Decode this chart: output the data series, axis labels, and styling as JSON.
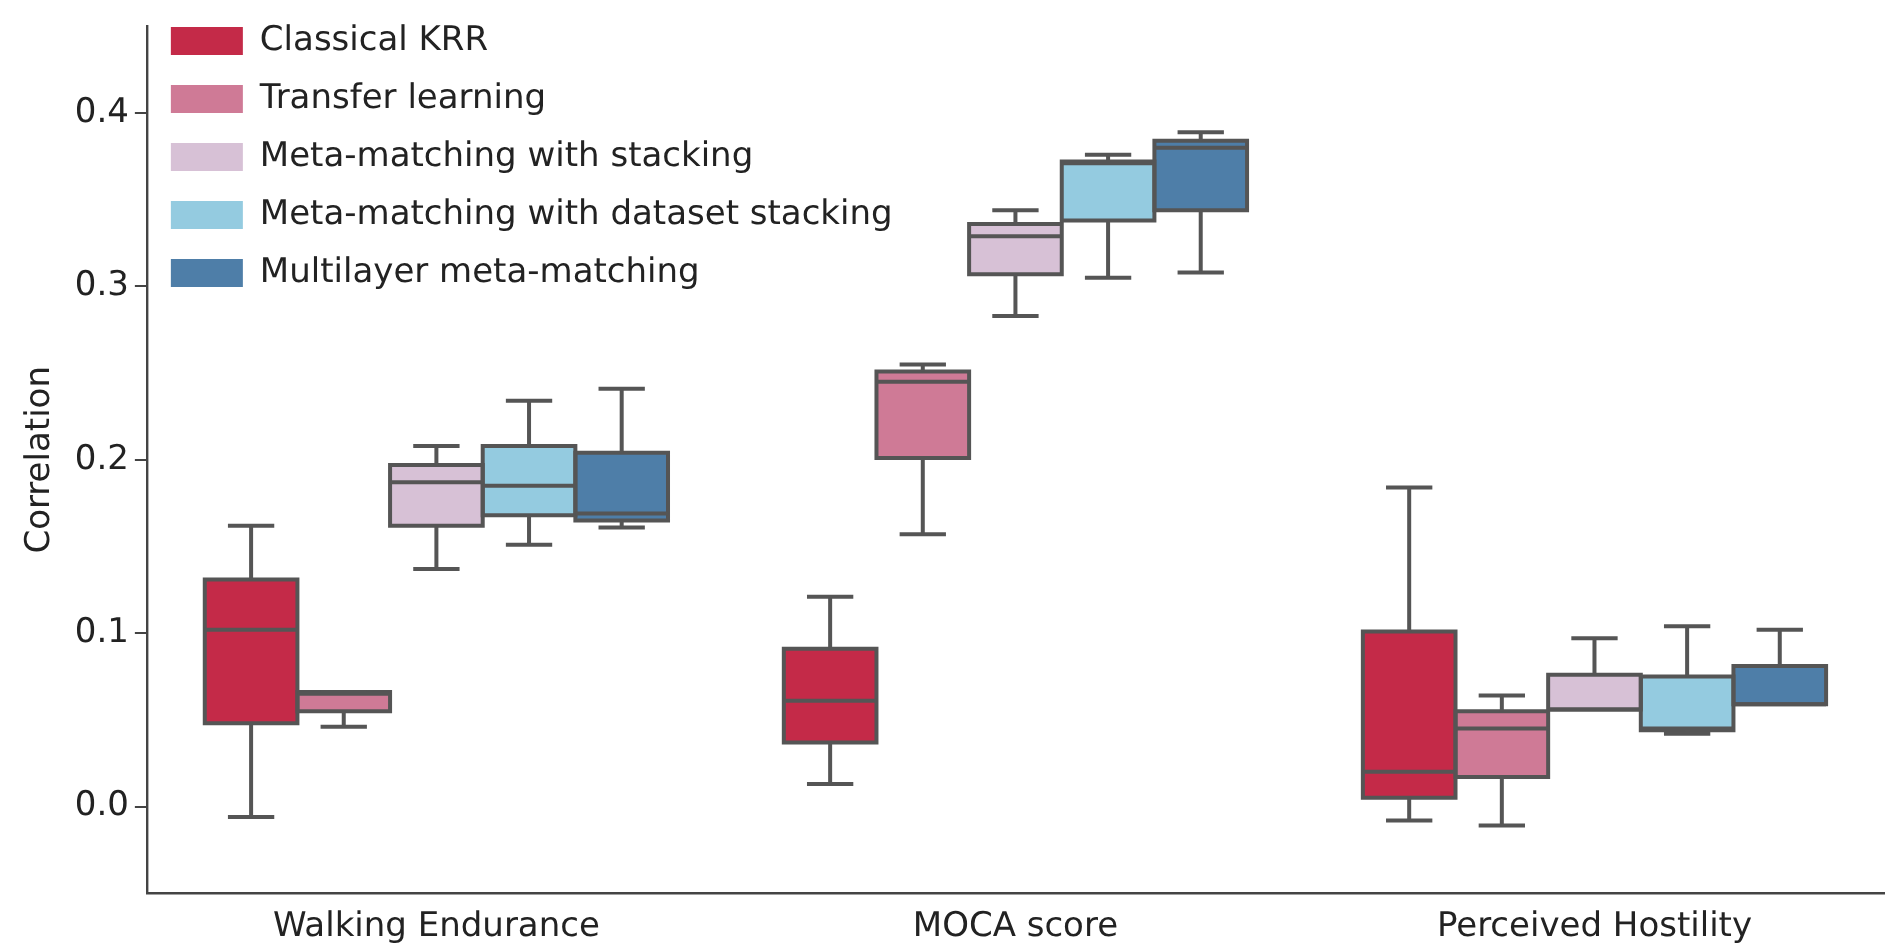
{
  "chart_data": {
    "type": "box",
    "ylabel": "Correlation",
    "categories": [
      "Walking Endurance",
      "MOCA score",
      "Perceived Hostility"
    ],
    "ylim": [
      -0.05,
      0.45
    ],
    "yticks": [
      {
        "value": 0,
        "label": "0.0"
      },
      0.1,
      0.2,
      0.3,
      0.4
    ],
    "grid": false,
    "legend": "top left",
    "series": [
      {
        "name": "Classical KRR",
        "color": "#c42a48",
        "boxes": [
          {
            "low": -0.006,
            "q1": 0.048,
            "median": 0.102,
            "q3": 0.131,
            "high": 0.162
          },
          {
            "low": 0.013,
            "q1": 0.037,
            "median": 0.061,
            "q3": 0.091,
            "high": 0.121
          },
          {
            "low": -0.008,
            "q1": 0.005,
            "median": 0.02,
            "q3": 0.101,
            "high": 0.184
          }
        ]
      },
      {
        "name": "Transfer learning",
        "color": "#cf7a96",
        "boxes": [
          {
            "low": 0.046,
            "q1": 0.055,
            "median": 0.065,
            "q3": 0.066,
            "high": 0.066
          },
          {
            "low": 0.157,
            "q1": 0.201,
            "median": 0.245,
            "q3": 0.251,
            "high": 0.255
          },
          {
            "low": -0.011,
            "q1": 0.017,
            "median": 0.045,
            "q3": 0.055,
            "high": 0.064
          }
        ]
      },
      {
        "name": "Meta-matching with stacking",
        "color": "#d7c1d6",
        "boxes": [
          {
            "low": 0.137,
            "q1": 0.162,
            "median": 0.187,
            "q3": 0.197,
            "high": 0.208
          },
          {
            "low": 0.283,
            "q1": 0.307,
            "median": 0.329,
            "q3": 0.336,
            "high": 0.344
          },
          {
            "low": 0.056,
            "q1": 0.056,
            "median": 0.056,
            "q3": 0.076,
            "high": 0.097
          }
        ]
      },
      {
        "name": "Meta-matching with dataset stacking",
        "color": "#94cbe0",
        "boxes": [
          {
            "low": 0.151,
            "q1": 0.168,
            "median": 0.185,
            "q3": 0.208,
            "high": 0.234
          },
          {
            "low": 0.305,
            "q1": 0.338,
            "median": 0.371,
            "q3": 0.372,
            "high": 0.376
          },
          {
            "low": 0.042,
            "q1": 0.044,
            "median": 0.045,
            "q3": 0.075,
            "high": 0.104
          }
        ]
      },
      {
        "name": "Multilayer meta-matching",
        "color": "#4e7ea8",
        "boxes": [
          {
            "low": 0.161,
            "q1": 0.165,
            "median": 0.169,
            "q3": 0.204,
            "high": 0.241
          },
          {
            "low": 0.308,
            "q1": 0.344,
            "median": 0.38,
            "q3": 0.384,
            "high": 0.389
          },
          {
            "low": 0.059,
            "q1": 0.059,
            "median": 0.059,
            "q3": 0.081,
            "high": 0.102
          }
        ]
      }
    ]
  }
}
